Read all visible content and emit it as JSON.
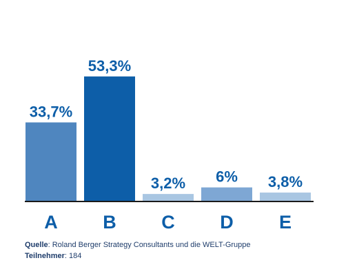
{
  "chart_data": {
    "type": "bar",
    "categories": [
      "A",
      "B",
      "C",
      "D",
      "E"
    ],
    "values": [
      33.7,
      53.3,
      3.2,
      6.0,
      3.8
    ],
    "value_labels": [
      "33,7%",
      "53,3%",
      "3,2%",
      "6%",
      "3,8%"
    ],
    "title": "",
    "xlabel": "",
    "ylabel": "",
    "ylim": [
      0,
      60
    ],
    "grid": false,
    "colors": [
      "#4f86bf",
      "#0d5ea8",
      "#a9c6e2",
      "#7ea7d4",
      "#a9c6e2"
    ],
    "label_color": "#0d5ea8",
    "axis_color": "#1a1a1a"
  },
  "footer": {
    "source_label": "Quelle",
    "source_text": ": Roland Berger Strategy Consultants und die WELT-Gruppe",
    "participants_label": "Teilnehmer",
    "participants_text": ": 184"
  }
}
